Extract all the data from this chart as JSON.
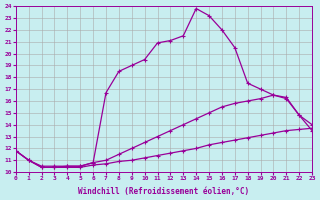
{
  "xlabel": "Windchill (Refroidissement éolien,°C)",
  "bg_color": "#c8eef0",
  "line_color": "#990099",
  "grid_color": "#aaaaaa",
  "xlim": [
    0,
    23
  ],
  "ylim": [
    10,
    24
  ],
  "xticks": [
    0,
    1,
    2,
    3,
    4,
    5,
    6,
    7,
    8,
    9,
    10,
    11,
    12,
    13,
    14,
    15,
    16,
    17,
    18,
    19,
    20,
    21,
    22,
    23
  ],
  "yticks": [
    10,
    11,
    12,
    13,
    14,
    15,
    16,
    17,
    18,
    19,
    20,
    21,
    22,
    23,
    24
  ],
  "curve1_x": [
    0,
    1,
    2,
    3,
    4,
    5,
    6,
    7,
    8,
    9,
    10,
    11,
    12,
    13,
    14,
    15,
    16,
    17,
    18,
    19,
    20,
    21,
    22,
    23
  ],
  "curve1_y": [
    11.8,
    11.0,
    10.4,
    10.4,
    10.5,
    10.5,
    10.8,
    16.7,
    18.5,
    19.0,
    19.5,
    20.9,
    21.1,
    21.5,
    23.8,
    23.2,
    22.0,
    20.5,
    17.5,
    17.0,
    16.5,
    16.2,
    14.8,
    13.5
  ],
  "curve2_x": [
    0,
    1,
    2,
    3,
    4,
    5,
    6,
    7,
    8,
    9,
    10,
    11,
    12,
    13,
    14,
    15,
    16,
    17,
    18,
    19,
    20,
    21,
    22,
    23
  ],
  "curve2_y": [
    11.8,
    11.0,
    10.5,
    10.5,
    10.5,
    10.5,
    10.8,
    11.0,
    11.5,
    12.0,
    12.5,
    13.0,
    13.5,
    14.0,
    14.5,
    15.0,
    15.5,
    15.8,
    16.0,
    16.2,
    16.5,
    16.3,
    14.8,
    14.0
  ],
  "curve3_x": [
    0,
    1,
    2,
    3,
    4,
    5,
    6,
    7,
    8,
    9,
    10,
    11,
    12,
    13,
    14,
    15,
    16,
    17,
    18,
    19,
    20,
    21,
    22,
    23
  ],
  "curve3_y": [
    11.8,
    11.0,
    10.4,
    10.4,
    10.4,
    10.4,
    10.6,
    10.7,
    10.9,
    11.0,
    11.2,
    11.4,
    11.6,
    11.8,
    12.0,
    12.3,
    12.5,
    12.7,
    12.9,
    13.1,
    13.3,
    13.5,
    13.6,
    13.7
  ]
}
